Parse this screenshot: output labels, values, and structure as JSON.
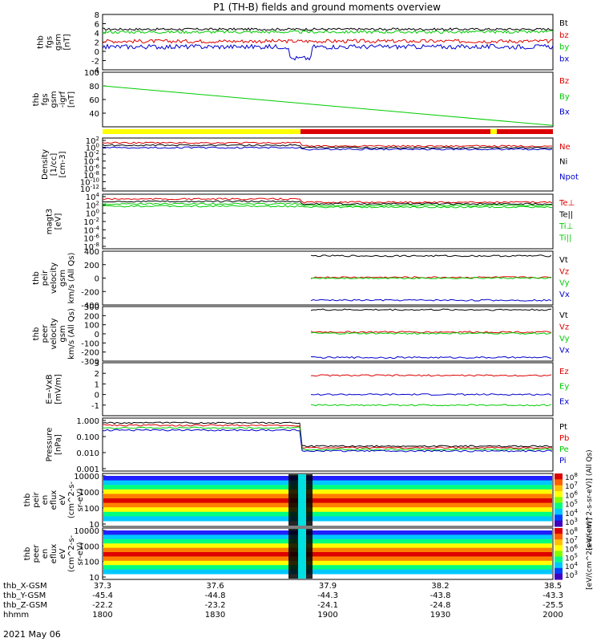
{
  "title": "P1 (TH-B) fields and ground moments overview",
  "date_label": "2021 May 06",
  "colors": {
    "black": "#000000",
    "red": "#dd0000",
    "green": "#00cc00",
    "blue": "#0000cc",
    "yellow": "#ffff00"
  },
  "chart_data": [
    {
      "type": "line",
      "ylabel": [
        "thb",
        "fgs",
        "gsm",
        "[nT]"
      ],
      "ylim": [
        -4,
        8
      ],
      "ticks": [
        -4,
        -2,
        0,
        2,
        4,
        6,
        8
      ],
      "series": [
        {
          "name": "Bt",
          "color": "black",
          "base": 4.8,
          "noise": 0.25
        },
        {
          "name": "bz",
          "color": "red",
          "base": 2.2,
          "noise": 0.4
        },
        {
          "name": "by",
          "color": "green",
          "base": 4.2,
          "noise": 0.3
        },
        {
          "name": "bx",
          "color": "blue",
          "base": 1.0,
          "noise": 0.5
        }
      ]
    },
    {
      "type": "line",
      "ylabel": [
        "thb",
        "fgs",
        "gsm",
        "-igrf",
        "[nT]"
      ],
      "ylim": [
        20,
        100
      ],
      "ticks": [
        40,
        60,
        80,
        100
      ],
      "series": [
        {
          "name": "Bz",
          "color": "red"
        },
        {
          "name": "By",
          "color": "green",
          "start": 80,
          "end": 22
        },
        {
          "name": "Bx",
          "color": "blue"
        }
      ]
    },
    {
      "type": "line",
      "ylabel": [
        "Density",
        "[1/cc]",
        "[cm-3]"
      ],
      "log": true,
      "ticks": [
        "10^2",
        "10^0",
        "10^-2",
        "10^-4",
        "10^-6",
        "10^-8",
        "10^-10",
        "10^-12"
      ],
      "series": [
        {
          "name": "Ne",
          "color": "red"
        },
        {
          "name": "Ni",
          "color": "black"
        },
        {
          "name": "Npot",
          "color": "blue"
        }
      ]
    },
    {
      "type": "line",
      "ylabel": [
        "magt3",
        "[eV]"
      ],
      "log": true,
      "ticks": [
        "10^4",
        "10^2",
        "10^0",
        "10^-2",
        "10^-4",
        "10^-6",
        "10^-8"
      ],
      "series": [
        {
          "name": "Te⊥",
          "color": "red"
        },
        {
          "name": "Te||",
          "color": "black"
        },
        {
          "name": "Ti⊥",
          "color": "green"
        },
        {
          "name": "Ti||",
          "color": "green"
        }
      ]
    },
    {
      "type": "line",
      "ylabel": [
        "thb",
        "peir",
        "velocity",
        "gsm",
        "km/s (All Qs)"
      ],
      "ylim": [
        -400,
        400
      ],
      "ticks": [
        -400,
        -200,
        0,
        200,
        400
      ],
      "series": [
        {
          "name": "Vt",
          "color": "black",
          "value": 330
        },
        {
          "name": "Vz",
          "color": "red",
          "value": 10
        },
        {
          "name": "Vy",
          "color": "green",
          "value": 0
        },
        {
          "name": "Vx",
          "color": "blue",
          "value": -330
        }
      ]
    },
    {
      "type": "line",
      "ylabel": [
        "thb",
        "peer",
        "velocity",
        "gsm",
        "km/s (All Qs)"
      ],
      "ylim": [
        -300,
        300
      ],
      "ticks": [
        -300,
        -200,
        -100,
        0,
        100,
        200,
        300
      ],
      "series": [
        {
          "name": "Vt",
          "color": "black",
          "value": 265
        },
        {
          "name": "Vz",
          "color": "red",
          "value": 20
        },
        {
          "name": "Vy",
          "color": "green",
          "value": 5
        },
        {
          "name": "Vx",
          "color": "blue",
          "value": -260
        }
      ]
    },
    {
      "type": "line",
      "ylabel": [
        "E=-VxB",
        "[mV/m]"
      ],
      "ylim": [
        -2,
        3
      ],
      "ticks": [
        -1,
        0,
        1,
        2,
        3
      ],
      "series": [
        {
          "name": "Ez",
          "color": "red",
          "value": 1.8
        },
        {
          "name": "Ey",
          "color": "green",
          "value": -1.0
        },
        {
          "name": "Ex",
          "color": "blue",
          "value": 0.0
        }
      ]
    },
    {
      "type": "line",
      "ylabel": [
        "Pressure",
        "[nPa]"
      ],
      "log": true,
      "ticks": [
        "1.000",
        "0.100",
        "0.010",
        "0.001"
      ],
      "series": [
        {
          "name": "Pt",
          "color": "black"
        },
        {
          "name": "Pb",
          "color": "red"
        },
        {
          "name": "Pe",
          "color": "green"
        },
        {
          "name": "Pi",
          "color": "blue"
        }
      ]
    },
    {
      "type": "heatmap",
      "ylabel": [
        "thb",
        "peir",
        "en",
        "eflux",
        "eV",
        "(cm^2-s-",
        "sr-eV)"
      ],
      "ticks": [
        "10000",
        "1000",
        "100",
        "10"
      ],
      "colorbar_label": "[eV/(cm^2-s-sr-eV)] (All Qs)",
      "colorbar_ticks": [
        "10^8",
        "10^7",
        "10^6",
        "10^5",
        "10^4",
        "10^3"
      ]
    },
    {
      "type": "heatmap",
      "ylabel": [
        "thb",
        "peer",
        "en",
        "eflux",
        "eV",
        "(cm^2-s-",
        "sr-eV)"
      ],
      "ticks": [
        "10000",
        "1000",
        "100",
        "10"
      ],
      "colorbar_label": "[eV/(cm^2-s-sr-eV)]",
      "colorbar_ticks": [
        "10^8",
        "10^7",
        "10^6",
        "10^5",
        "10^4",
        "10^3"
      ]
    }
  ],
  "xaxis": {
    "rows": [
      {
        "label": "thb_X-GSM",
        "values": [
          "37.3",
          "37.6",
          "37.9",
          "38.2",
          "38.5"
        ]
      },
      {
        "label": "thb_Y-GSM",
        "values": [
          "-45.4",
          "-44.8",
          "-44.3",
          "-43.8",
          "-43.3"
        ]
      },
      {
        "label": "thb_Z-GSM",
        "values": [
          "-22.2",
          "-23.2",
          "-24.1",
          "-24.8",
          "-25.5"
        ]
      },
      {
        "label": "hhmm",
        "values": [
          "1800",
          "1830",
          "1900",
          "1930",
          "2000"
        ]
      }
    ]
  }
}
